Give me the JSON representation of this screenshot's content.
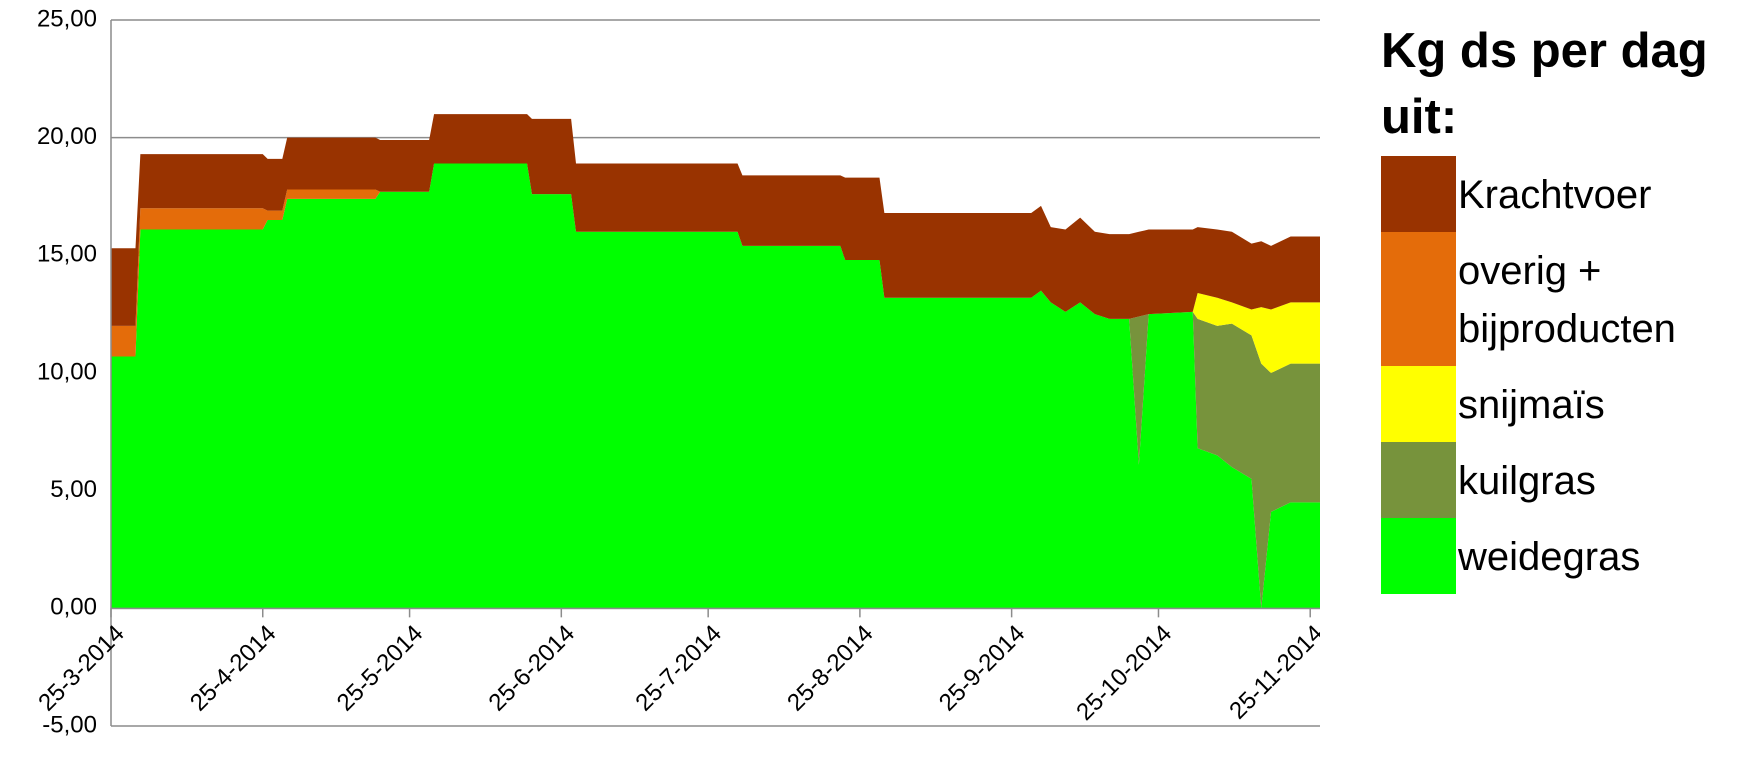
{
  "chart_data": {
    "type": "stacked_area",
    "legend_title": "Kg ds per dag uit:",
    "legend": "right",
    "grid": true,
    "x": [
      "25-3-2014",
      "30-3-2014",
      "31-3-2014",
      "25-4-2014",
      "26-4-2014",
      "29-4-2014",
      "30-4-2014",
      "18-5-2014",
      "19-5-2014",
      "29-5-2014",
      "30-5-2014",
      "18-6-2014",
      "19-6-2014",
      "27-6-2014",
      "28-6-2014",
      "31-7-2014",
      "1-8-2014",
      "21-8-2014",
      "22-8-2014",
      "29-8-2014",
      "30-8-2014",
      "29-9-2014",
      "1-10-2014",
      "3-10-2014",
      "6-10-2014",
      "9-10-2014",
      "12-10-2014",
      "15-10-2014",
      "19-10-2014",
      "21-10-2014",
      "23-10-2014",
      "1-11-2014",
      "2-11-2014",
      "6-11-2014",
      "9-11-2014",
      "13-11-2014",
      "15-11-2014",
      "17-11-2014",
      "21-11-2014",
      "27-11-2014"
    ],
    "series": [
      {
        "name": "weidegras",
        "color": "#00ff00",
        "values": [
          10.7,
          10.7,
          16.1,
          16.1,
          16.5,
          16.5,
          17.4,
          17.4,
          17.7,
          17.7,
          18.9,
          18.9,
          17.6,
          17.6,
          16.0,
          16.0,
          15.4,
          15.4,
          14.8,
          14.8,
          13.2,
          13.2,
          13.5,
          13.0,
          12.6,
          13.0,
          12.5,
          12.3,
          12.3,
          6.1,
          12.5,
          12.6,
          6.8,
          6.5,
          6.0,
          5.5,
          0,
          4.1,
          4.5,
          4.5
        ]
      },
      {
        "name": "kuilgras",
        "color": "#77933c",
        "values": [
          0,
          0,
          0,
          0,
          0,
          0,
          0,
          0,
          0,
          0,
          0,
          0,
          0,
          0,
          0,
          0,
          0,
          0,
          0,
          0,
          0,
          0,
          0,
          0,
          0,
          0,
          0,
          0,
          0,
          6.3,
          0,
          0,
          5.5,
          5.5,
          6.1,
          6.1,
          10.4,
          5.9,
          5.9,
          5.9
        ]
      },
      {
        "name": "snijmaïs",
        "color": "#ffff00",
        "values": [
          0,
          0,
          0,
          0,
          0,
          0,
          0,
          0,
          0,
          0,
          0,
          0,
          0,
          0,
          0,
          0,
          0,
          0,
          0,
          0,
          0,
          0,
          0,
          0,
          0,
          0,
          0,
          0,
          0,
          0,
          0,
          0,
          1.1,
          1.2,
          0.9,
          1.1,
          2.4,
          2.7,
          2.6,
          2.6
        ]
      },
      {
        "name": "overig + bijproducten",
        "color": "#e46c0a",
        "values": [
          1.3,
          1.3,
          0.9,
          0.9,
          0.4,
          0.4,
          0.4,
          0.4,
          0,
          0,
          0,
          0,
          0,
          0,
          0,
          0,
          0,
          0,
          0,
          0,
          0,
          0,
          0,
          0,
          0,
          0,
          0,
          0,
          0,
          0,
          0,
          0,
          0,
          0,
          0,
          0,
          0,
          0,
          0,
          0
        ]
      },
      {
        "name": "Krachtvoer",
        "color": "#993300",
        "values": [
          3.3,
          3.3,
          2.3,
          2.3,
          2.2,
          2.2,
          2.2,
          2.2,
          2.2,
          2.2,
          2.1,
          2.1,
          3.2,
          3.2,
          2.9,
          2.9,
          3.0,
          3.0,
          3.5,
          3.5,
          3.6,
          3.6,
          3.6,
          3.2,
          3.5,
          3.6,
          3.5,
          3.6,
          3.6,
          3.6,
          3.6,
          3.5,
          2.8,
          2.9,
          3.0,
          2.8,
          2.8,
          2.7,
          2.8,
          2.8
        ]
      }
    ],
    "xlim": [
      "25-3-2014",
      "27-11-2014"
    ],
    "xticks": [
      "25-3-2014",
      "25-4-2014",
      "25-5-2014",
      "25-6-2014",
      "25-7-2014",
      "25-8-2014",
      "25-9-2014",
      "25-10-2014",
      "25-11-2014"
    ],
    "ylim": [
      -5,
      25
    ],
    "yticks": [
      {
        "value": -5,
        "label": "-5,00"
      },
      {
        "value": 0,
        "label": "0,00"
      },
      {
        "value": 5,
        "label": "5,00"
      },
      {
        "value": 10,
        "label": "10,00"
      },
      {
        "value": 15,
        "label": "15,00"
      },
      {
        "value": 20,
        "label": "20,00"
      },
      {
        "value": 25,
        "label": "25,00"
      }
    ]
  }
}
